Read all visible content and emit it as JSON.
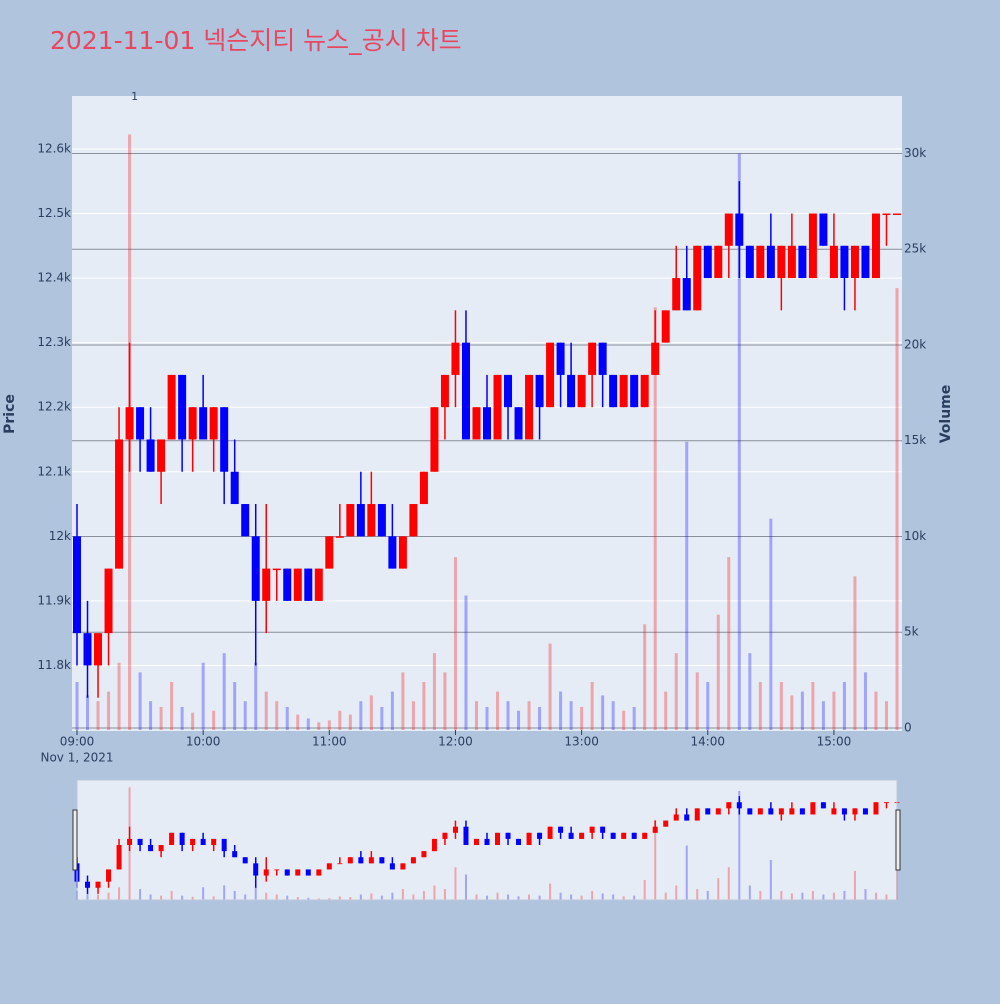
{
  "chart_data": {
    "type": "candlestick",
    "title": "2021-11-01 넥슨지티 뉴스_공시 차트",
    "y_label": "Price",
    "y2_label": "Volume",
    "x_date_label": "Nov 1, 2021",
    "increasing_color": "#ff0000",
    "decreasing_color": "#0000ff",
    "grid": true,
    "rangeslider": true,
    "xlim": [
      "2021-11-01 09:00",
      "2021-11-01 15:30"
    ],
    "xticks": [
      {
        "value": "2021-11-01 09:00",
        "label": "09:00"
      },
      {
        "value": "2021-11-01 10:00",
        "label": "10:00"
      },
      {
        "value": "2021-11-01 11:00",
        "label": "11:00"
      },
      {
        "value": "2021-11-01 12:00",
        "label": "12:00"
      },
      {
        "value": "2021-11-01 13:00",
        "label": "13:00"
      },
      {
        "value": "2021-11-01 14:00",
        "label": "14:00"
      },
      {
        "value": "2021-11-01 15:00",
        "label": "15:00"
      }
    ],
    "ylim": [
      11700,
      12682
    ],
    "yticks": [
      {
        "value": 11800,
        "label": "11.8k"
      },
      {
        "value": 11900,
        "label": "11.9k"
      },
      {
        "value": 12000,
        "label": "12k"
      },
      {
        "value": 12100,
        "label": "12.1k"
      },
      {
        "value": 12200,
        "label": "12.2k"
      },
      {
        "value": 12300,
        "label": "12.3k"
      },
      {
        "value": 12400,
        "label": "12.4k"
      },
      {
        "value": 12500,
        "label": "12.5k"
      },
      {
        "value": 12600,
        "label": "12.6k"
      }
    ],
    "y2lim": [
      0,
      33000
    ],
    "y2ticks": [
      0,
      {
        "value": 5000,
        "label": "5k"
      },
      {
        "value": 10000,
        "label": "10k"
      },
      {
        "value": 15000,
        "label": "15k"
      },
      {
        "value": 20000,
        "label": "20k"
      },
      {
        "value": 25000,
        "label": "25k"
      },
      {
        "value": 30000,
        "label": "30k"
      }
    ],
    "annotations": [
      {
        "x": "2021-11-01 09:25",
        "text": "1"
      }
    ],
    "x": [
      "2021-11-01 09:00",
      "2021-11-01 09:05",
      "2021-11-01 09:10",
      "2021-11-01 09:15",
      "2021-11-01 09:20",
      "2021-11-01 09:25",
      "2021-11-01 09:30",
      "2021-11-01 09:35",
      "2021-11-01 09:40",
      "2021-11-01 09:45",
      "2021-11-01 09:50",
      "2021-11-01 09:55",
      "2021-11-01 10:00",
      "2021-11-01 10:05",
      "2021-11-01 10:10",
      "2021-11-01 10:15",
      "2021-11-01 10:20",
      "2021-11-01 10:25",
      "2021-11-01 10:30",
      "2021-11-01 10:35",
      "2021-11-01 10:40",
      "2021-11-01 10:45",
      "2021-11-01 10:50",
      "2021-11-01 10:55",
      "2021-11-01 11:00",
      "2021-11-01 11:05",
      "2021-11-01 11:10",
      "2021-11-01 11:15",
      "2021-11-01 11:20",
      "2021-11-01 11:25",
      "2021-11-01 11:30",
      "2021-11-01 11:35",
      "2021-11-01 11:40",
      "2021-11-01 11:45",
      "2021-11-01 11:50",
      "2021-11-01 11:55",
      "2021-11-01 12:00",
      "2021-11-01 12:05",
      "2021-11-01 12:10",
      "2021-11-01 12:15",
      "2021-11-01 12:20",
      "2021-11-01 12:25",
      "2021-11-01 12:30",
      "2021-11-01 12:35",
      "2021-11-01 12:40",
      "2021-11-01 12:45",
      "2021-11-01 12:50",
      "2021-11-01 12:55",
      "2021-11-01 13:00",
      "2021-11-01 13:05",
      "2021-11-01 13:10",
      "2021-11-01 13:15",
      "2021-11-01 13:20",
      "2021-11-01 13:25",
      "2021-11-01 13:30",
      "2021-11-01 13:35",
      "2021-11-01 13:40",
      "2021-11-01 13:45",
      "2021-11-01 13:50",
      "2021-11-01 13:55",
      "2021-11-01 14:00",
      "2021-11-01 14:05",
      "2021-11-01 14:10",
      "2021-11-01 14:15",
      "2021-11-01 14:20",
      "2021-11-01 14:25",
      "2021-11-01 14:30",
      "2021-11-01 14:35",
      "2021-11-01 14:40",
      "2021-11-01 14:45",
      "2021-11-01 14:50",
      "2021-11-01 14:55",
      "2021-11-01 15:00",
      "2021-11-01 15:05",
      "2021-11-01 15:10",
      "2021-11-01 15:15",
      "2021-11-01 15:20",
      "2021-11-01 15:25",
      "2021-11-01 15:30"
    ],
    "open": [
      12000,
      11850,
      11800,
      11850,
      11950,
      12150,
      12200,
      12150,
      12100,
      12150,
      12250,
      12150,
      12200,
      12150,
      12200,
      12100,
      12050,
      12000,
      11900,
      11950,
      11950,
      11900,
      11950,
      11900,
      11950,
      12000,
      12000,
      12050,
      12000,
      12050,
      12000,
      11950,
      12000,
      12050,
      12100,
      12200,
      12250,
      12300,
      12150,
      12200,
      12150,
      12250,
      12200,
      12150,
      12250,
      12200,
      12300,
      12250,
      12200,
      12250,
      12300,
      12250,
      12200,
      12250,
      12200,
      12250,
      12300,
      12350,
      12400,
      12350,
      12450,
      12400,
      12450,
      12500,
      12450,
      12400,
      12450,
      12400,
      12400,
      12450,
      12400,
      12500,
      12400,
      12450,
      12400,
      12450,
      12400,
      12500,
      12500
    ],
    "high": [
      12050,
      11900,
      11850,
      11950,
      12200,
      12300,
      12200,
      12200,
      12150,
      12250,
      12250,
      12200,
      12250,
      12200,
      12200,
      12150,
      12050,
      12050,
      12050,
      11950,
      11950,
      11950,
      11950,
      11950,
      12000,
      12050,
      12050,
      12100,
      12100,
      12050,
      12050,
      12000,
      12050,
      12100,
      12200,
      12250,
      12350,
      12350,
      12200,
      12250,
      12250,
      12250,
      12200,
      12250,
      12250,
      12300,
      12300,
      12300,
      12250,
      12300,
      12300,
      12250,
      12250,
      12250,
      12250,
      12350,
      12350,
      12450,
      12450,
      12450,
      12450,
      12450,
      12500,
      12550,
      12450,
      12450,
      12500,
      12450,
      12500,
      12450,
      12500,
      12500,
      12500,
      12450,
      12450,
      12450,
      12500,
      12500,
      12500
    ],
    "low": [
      11800,
      11750,
      11750,
      11800,
      11950,
      12100,
      12100,
      12100,
      12050,
      12150,
      12100,
      12100,
      12150,
      12100,
      12050,
      12050,
      12000,
      11800,
      11850,
      11900,
      11900,
      11900,
      11900,
      11900,
      11950,
      12000,
      12000,
      12000,
      12000,
      12000,
      11950,
      11950,
      12000,
      12050,
      12100,
      12150,
      12200,
      12150,
      12150,
      12150,
      12150,
      12150,
      12150,
      12150,
      12150,
      12200,
      12200,
      12200,
      12200,
      12200,
      12200,
      12200,
      12200,
      12200,
      12200,
      12250,
      12300,
      12350,
      12350,
      12350,
      12400,
      12400,
      12400,
      12400,
      12400,
      12400,
      12400,
      12350,
      12400,
      12400,
      12400,
      12450,
      12400,
      12350,
      12350,
      12400,
      12400,
      12450,
      12500
    ],
    "close": [
      11850,
      11800,
      11850,
      11950,
      12150,
      12200,
      12150,
      12100,
      12150,
      12250,
      12150,
      12200,
      12150,
      12200,
      12100,
      12050,
      12000,
      11900,
      11950,
      11950,
      11900,
      11950,
      11900,
      11950,
      12000,
      12000,
      12050,
      12000,
      12050,
      12000,
      11950,
      12000,
      12050,
      12100,
      12200,
      12250,
      12300,
      12150,
      12200,
      12150,
      12250,
      12200,
      12150,
      12250,
      12200,
      12300,
      12250,
      12200,
      12250,
      12300,
      12250,
      12200,
      12250,
      12200,
      12250,
      12300,
      12350,
      12400,
      12350,
      12450,
      12400,
      12450,
      12500,
      12450,
      12400,
      12450,
      12400,
      12450,
      12450,
      12400,
      12500,
      12450,
      12450,
      12400,
      12450,
      12400,
      12500,
      12500,
      12500
    ],
    "volume": [
      2500,
      1800,
      1500,
      2000,
      3500,
      31000,
      3000,
      1500,
      1200,
      2500,
      1200,
      900,
      3500,
      1000,
      4000,
      2500,
      1500,
      3500,
      2000,
      1500,
      1200,
      800,
      600,
      400,
      500,
      1000,
      800,
      1500,
      1800,
      1200,
      2000,
      3000,
      1500,
      2500,
      4000,
      3000,
      9000,
      7000,
      1500,
      1200,
      2000,
      1500,
      1000,
      1500,
      1200,
      4500,
      2000,
      1500,
      1200,
      2500,
      1800,
      1500,
      1000,
      1200,
      5500,
      22000,
      2000,
      4000,
      15000,
      3000,
      2500,
      6000,
      9000,
      30000,
      4000,
      2500,
      11000,
      2500,
      1800,
      2000,
      2500,
      1500,
      2000,
      2500,
      8000,
      3000,
      2000,
      1500,
      23000
    ]
  }
}
